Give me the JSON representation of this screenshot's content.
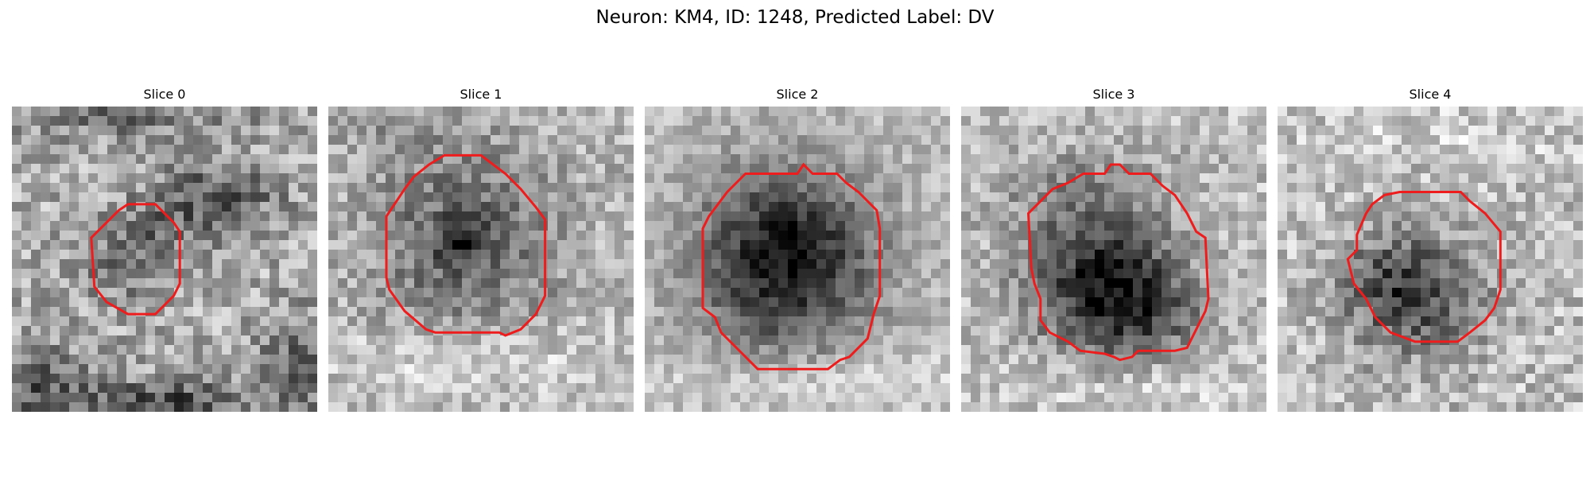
{
  "title": "Neuron: KM4, ID: 1248, Predicted Label: DV",
  "colors": {
    "background": "#ffffff",
    "contour": "#ee1c1c",
    "colormap": "gray"
  },
  "panels": [
    {
      "label": "Slice 0",
      "dark_spots": [
        [
          0.68,
          0.31,
          0.14,
          0.09,
          95
        ],
        [
          0.35,
          0.52,
          0.12,
          0.1,
          45
        ],
        [
          0.45,
          0.43,
          0.1,
          0.1,
          35
        ],
        [
          0.5,
          0.98,
          0.2,
          0.06,
          110
        ],
        [
          0.08,
          0.92,
          0.12,
          0.1,
          80
        ],
        [
          0.95,
          0.85,
          0.1,
          0.12,
          75
        ],
        [
          0.35,
          0.03,
          0.3,
          0.05,
          60
        ]
      ],
      "light_spots": [
        [
          0.85,
          0.34,
          0.02,
          0.02,
          70
        ]
      ],
      "base_level": 175,
      "noise": 55,
      "contour": [
        [
          0.38,
          0.32
        ],
        [
          0.47,
          0.32
        ],
        [
          0.53,
          0.38
        ],
        [
          0.55,
          0.41
        ],
        [
          0.55,
          0.58
        ],
        [
          0.53,
          0.62
        ],
        [
          0.47,
          0.68
        ],
        [
          0.38,
          0.68
        ],
        [
          0.31,
          0.64
        ],
        [
          0.27,
          0.59
        ],
        [
          0.26,
          0.43
        ],
        [
          0.31,
          0.38
        ],
        [
          0.35,
          0.34
        ]
      ]
    },
    {
      "label": "Slice 1",
      "dark_spots": [
        [
          0.45,
          0.44,
          0.21,
          0.22,
          90
        ],
        [
          0.43,
          0.44,
          0.05,
          0.05,
          80
        ],
        [
          0.15,
          0.05,
          0.25,
          0.06,
          25
        ]
      ],
      "light_spots": [
        [
          0.45,
          0.82,
          0.3,
          0.08,
          40
        ]
      ],
      "base_level": 185,
      "noise": 45,
      "contour": [
        [
          0.38,
          0.16
        ],
        [
          0.5,
          0.16
        ],
        [
          0.58,
          0.22
        ],
        [
          0.63,
          0.27
        ],
        [
          0.68,
          0.33
        ],
        [
          0.71,
          0.37
        ],
        [
          0.71,
          0.62
        ],
        [
          0.68,
          0.68
        ],
        [
          0.63,
          0.73
        ],
        [
          0.58,
          0.75
        ],
        [
          0.56,
          0.74
        ],
        [
          0.5,
          0.74
        ],
        [
          0.35,
          0.74
        ],
        [
          0.32,
          0.73
        ],
        [
          0.25,
          0.67
        ],
        [
          0.2,
          0.6
        ],
        [
          0.19,
          0.56
        ],
        [
          0.19,
          0.36
        ],
        [
          0.25,
          0.27
        ],
        [
          0.28,
          0.23
        ],
        [
          0.33,
          0.19
        ]
      ]
    },
    {
      "label": "Slice 2",
      "dark_spots": [
        [
          0.45,
          0.52,
          0.22,
          0.23,
          140
        ],
        [
          0.5,
          0.45,
          0.15,
          0.13,
          40
        ]
      ],
      "light_spots": [
        [
          0.5,
          0.9,
          0.35,
          0.07,
          45
        ]
      ],
      "base_level": 190,
      "noise": 35,
      "contour": [
        [
          0.33,
          0.22
        ],
        [
          0.5,
          0.22
        ],
        [
          0.52,
          0.19
        ],
        [
          0.55,
          0.22
        ],
        [
          0.63,
          0.22
        ],
        [
          0.66,
          0.25
        ],
        [
          0.7,
          0.28
        ],
        [
          0.76,
          0.34
        ],
        [
          0.77,
          0.4
        ],
        [
          0.77,
          0.62
        ],
        [
          0.75,
          0.68
        ],
        [
          0.73,
          0.76
        ],
        [
          0.67,
          0.82
        ],
        [
          0.64,
          0.83
        ],
        [
          0.6,
          0.86
        ],
        [
          0.37,
          0.86
        ],
        [
          0.32,
          0.81
        ],
        [
          0.25,
          0.74
        ],
        [
          0.23,
          0.69
        ],
        [
          0.19,
          0.66
        ],
        [
          0.19,
          0.4
        ],
        [
          0.21,
          0.36
        ],
        [
          0.27,
          0.28
        ]
      ]
    },
    {
      "label": "Slice 3",
      "dark_spots": [
        [
          0.45,
          0.57,
          0.17,
          0.17,
          140
        ],
        [
          0.6,
          0.68,
          0.14,
          0.12,
          80
        ],
        [
          0.4,
          0.28,
          0.2,
          0.09,
          40
        ]
      ],
      "light_spots": [
        [
          0.55,
          0.9,
          0.25,
          0.08,
          35
        ]
      ],
      "base_level": 190,
      "noise": 45,
      "contour": [
        [
          0.35,
          0.25
        ],
        [
          0.4,
          0.22
        ],
        [
          0.47,
          0.22
        ],
        [
          0.49,
          0.19
        ],
        [
          0.52,
          0.19
        ],
        [
          0.55,
          0.22
        ],
        [
          0.62,
          0.22
        ],
        [
          0.66,
          0.26
        ],
        [
          0.7,
          0.29
        ],
        [
          0.74,
          0.35
        ],
        [
          0.77,
          0.41
        ],
        [
          0.8,
          0.43
        ],
        [
          0.81,
          0.63
        ],
        [
          0.8,
          0.67
        ],
        [
          0.77,
          0.73
        ],
        [
          0.74,
          0.79
        ],
        [
          0.7,
          0.8
        ],
        [
          0.67,
          0.8
        ],
        [
          0.58,
          0.8
        ],
        [
          0.56,
          0.82
        ],
        [
          0.52,
          0.83
        ],
        [
          0.5,
          0.82
        ],
        [
          0.47,
          0.81
        ],
        [
          0.39,
          0.8
        ],
        [
          0.35,
          0.77
        ],
        [
          0.29,
          0.74
        ],
        [
          0.26,
          0.7
        ],
        [
          0.26,
          0.63
        ],
        [
          0.24,
          0.58
        ],
        [
          0.23,
          0.53
        ],
        [
          0.22,
          0.35
        ],
        [
          0.25,
          0.32
        ],
        [
          0.3,
          0.27
        ]
      ]
    },
    {
      "label": "Slice 4",
      "dark_spots": [
        [
          0.45,
          0.62,
          0.16,
          0.14,
          110
        ],
        [
          0.38,
          0.55,
          0.1,
          0.1,
          40
        ]
      ],
      "light_spots": [
        [
          0.5,
          0.1,
          0.3,
          0.06,
          20
        ]
      ],
      "base_level": 190,
      "noise": 50,
      "contour": [
        [
          0.35,
          0.29
        ],
        [
          0.4,
          0.28
        ],
        [
          0.6,
          0.28
        ],
        [
          0.63,
          0.31
        ],
        [
          0.68,
          0.35
        ],
        [
          0.73,
          0.41
        ],
        [
          0.73,
          0.6
        ],
        [
          0.71,
          0.66
        ],
        [
          0.68,
          0.7
        ],
        [
          0.63,
          0.74
        ],
        [
          0.59,
          0.77
        ],
        [
          0.45,
          0.77
        ],
        [
          0.37,
          0.74
        ],
        [
          0.32,
          0.69
        ],
        [
          0.29,
          0.63
        ],
        [
          0.25,
          0.58
        ],
        [
          0.23,
          0.5
        ],
        [
          0.26,
          0.47
        ],
        [
          0.26,
          0.42
        ],
        [
          0.29,
          0.35
        ],
        [
          0.31,
          0.32
        ]
      ]
    }
  ]
}
